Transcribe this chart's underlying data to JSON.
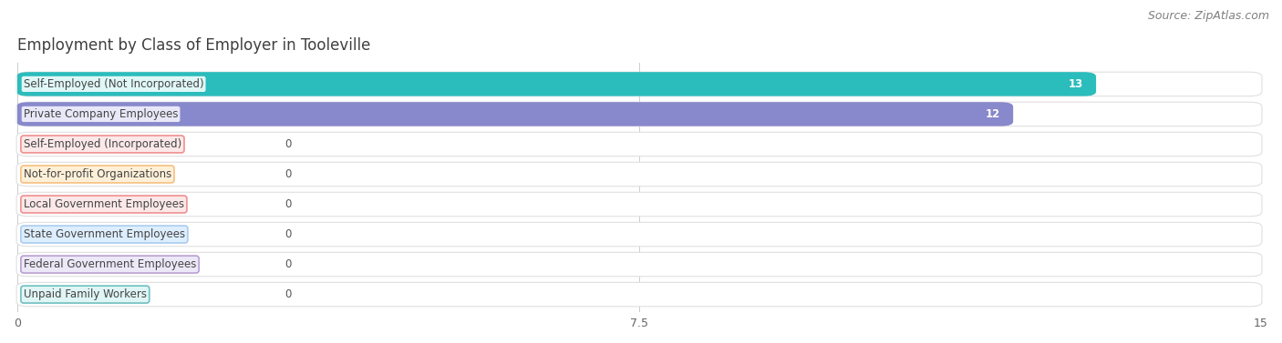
{
  "title": "Employment by Class of Employer in Tooleville",
  "source": "Source: ZipAtlas.com",
  "categories": [
    "Self-Employed (Not Incorporated)",
    "Private Company Employees",
    "Self-Employed (Incorporated)",
    "Not-for-profit Organizations",
    "Local Government Employees",
    "State Government Employees",
    "Federal Government Employees",
    "Unpaid Family Workers"
  ],
  "values": [
    13,
    12,
    0,
    0,
    0,
    0,
    0,
    0
  ],
  "bar_colors": [
    "#2bbcbc",
    "#8888cc",
    "#f09090",
    "#f5c080",
    "#f09090",
    "#aaccee",
    "#b8a0d0",
    "#70c0c0"
  ],
  "label_bg_colors": [
    "#e0f7f7",
    "#e8e8f8",
    "#fce8e8",
    "#fef0d8",
    "#fce8e8",
    "#ddeeff",
    "#ede8f8",
    "#e0f5f5"
  ],
  "label_border_colors": [
    "#2bbcbc",
    "#8888cc",
    "#f09090",
    "#f5c080",
    "#f09090",
    "#aaccee",
    "#b8a0d0",
    "#70c0c0"
  ],
  "xlim": [
    0,
    15
  ],
  "xticks": [
    0,
    7.5,
    15
  ],
  "background_color": "#ffffff",
  "row_bg_color": "#ffffff",
  "row_border_color": "#e0e0e0",
  "title_color": "#404040",
  "source_color": "#808080",
  "title_fontsize": 12,
  "source_fontsize": 9,
  "label_fontsize": 8.5,
  "value_fontsize": 8.5
}
